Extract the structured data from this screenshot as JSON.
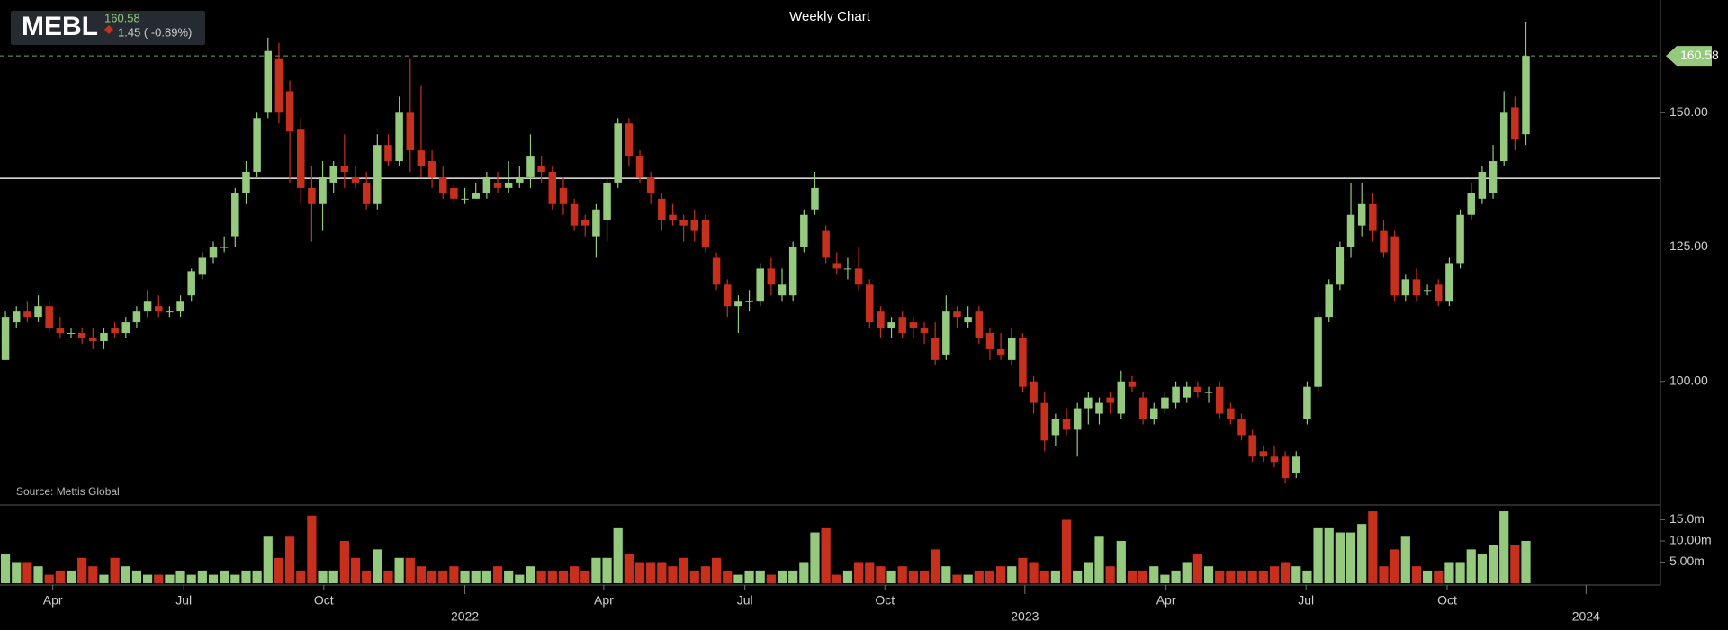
{
  "chart_data": {
    "type": "candlestick",
    "title": "Weekly Chart",
    "symbol": "MEBL",
    "change": "1.45 ( -0.89%)",
    "source": "Source: Mettis Global",
    "last_price": 160.58,
    "hline": 137.8,
    "up_color": "#94c97e",
    "down_color": "#c8301e",
    "candles": [
      [
        104,
        113,
        104,
        112
      ],
      [
        111,
        114,
        110,
        113
      ],
      [
        113,
        115,
        111,
        112
      ],
      [
        112,
        116,
        111,
        114
      ],
      [
        114,
        115,
        109,
        110
      ],
      [
        110,
        112,
        108,
        109
      ],
      [
        109,
        110,
        108,
        109
      ],
      [
        109,
        110,
        107,
        108
      ],
      [
        108,
        110,
        106,
        107.5
      ],
      [
        107.5,
        110,
        106,
        109
      ],
      [
        110,
        111,
        108,
        109
      ],
      [
        109,
        112,
        108,
        111
      ],
      [
        111,
        114,
        110,
        113
      ],
      [
        113,
        117,
        112,
        115
      ],
      [
        114,
        116,
        112,
        113
      ],
      [
        113,
        114,
        112,
        113
      ],
      [
        113,
        116,
        112,
        115
      ],
      [
        116,
        121,
        115,
        120.5
      ],
      [
        120,
        124,
        119,
        123
      ],
      [
        123,
        126,
        122,
        125
      ],
      [
        125,
        127,
        124,
        125
      ],
      [
        127,
        136,
        125,
        135
      ],
      [
        135,
        141,
        133,
        139
      ],
      [
        139,
        150,
        138,
        149
      ],
      [
        150,
        164,
        149,
        161.5
      ],
      [
        160,
        163,
        148,
        150
      ],
      [
        154,
        156,
        137,
        146.5
      ],
      [
        147,
        149,
        133,
        136
      ],
      [
        136,
        140,
        126,
        133
      ],
      [
        133,
        141,
        128,
        138
      ],
      [
        137,
        141,
        135,
        140
      ],
      [
        140,
        146,
        136,
        139
      ],
      [
        138,
        140,
        136,
        137
      ],
      [
        137,
        139,
        132,
        133
      ],
      [
        133,
        146,
        132,
        144
      ],
      [
        144,
        146,
        140,
        141
      ],
      [
        141,
        153,
        140,
        150
      ],
      [
        150,
        160,
        139,
        143
      ],
      [
        143,
        155,
        138,
        140
      ],
      [
        141,
        143,
        136,
        138
      ],
      [
        138,
        140,
        134,
        135
      ],
      [
        136,
        137,
        133,
        134
      ],
      [
        134,
        136,
        133,
        134
      ],
      [
        134,
        137,
        134,
        135
      ],
      [
        135,
        139,
        134,
        138
      ],
      [
        137,
        139,
        135,
        136
      ],
      [
        136,
        141,
        135,
        137
      ],
      [
        137,
        140,
        136,
        138
      ],
      [
        138,
        146,
        136,
        142
      ],
      [
        140,
        142,
        137,
        139
      ],
      [
        139,
        140,
        132,
        133
      ],
      [
        136,
        138,
        131,
        133
      ],
      [
        133,
        134,
        128,
        129
      ],
      [
        130,
        131,
        127,
        129
      ],
      [
        127,
        133,
        123,
        132
      ],
      [
        130,
        138,
        126,
        137
      ],
      [
        137,
        149,
        136,
        148
      ],
      [
        148,
        149,
        140,
        142
      ],
      [
        142,
        143,
        137,
        138
      ],
      [
        138,
        139,
        133,
        135
      ],
      [
        134,
        135,
        128,
        130
      ],
      [
        131,
        133,
        129,
        130
      ],
      [
        130,
        131,
        126,
        129
      ],
      [
        130,
        132,
        126,
        128
      ],
      [
        130,
        131,
        124,
        125
      ],
      [
        123,
        124,
        117,
        118
      ],
      [
        118,
        119,
        112,
        114
      ],
      [
        114,
        116,
        109,
        115
      ],
      [
        115,
        117,
        113,
        115
      ],
      [
        115,
        122,
        114,
        121
      ],
      [
        121,
        123,
        116,
        118
      ],
      [
        116,
        121,
        115,
        118
      ],
      [
        116,
        126,
        115,
        125
      ],
      [
        125,
        132,
        124,
        131
      ],
      [
        132,
        139,
        131,
        136
      ],
      [
        128,
        129,
        122,
        123
      ],
      [
        122,
        124,
        120,
        121
      ],
      [
        121,
        123,
        119,
        121
      ],
      [
        121,
        125,
        117,
        118
      ],
      [
        118,
        119,
        110,
        111
      ],
      [
        113,
        114,
        108,
        110
      ],
      [
        110,
        112,
        108,
        111
      ],
      [
        112,
        113,
        108,
        109
      ],
      [
        111,
        112,
        108,
        110
      ],
      [
        110,
        111,
        107,
        109
      ],
      [
        108,
        111,
        103,
        104
      ],
      [
        105,
        116,
        104,
        113
      ],
      [
        113,
        114,
        110,
        112
      ],
      [
        111,
        114,
        110,
        112
      ],
      [
        113,
        114,
        107,
        108
      ],
      [
        109,
        110,
        104,
        106
      ],
      [
        106,
        109,
        104,
        105
      ],
      [
        104,
        110,
        103,
        108
      ],
      [
        108,
        109,
        98,
        99
      ],
      [
        100,
        101,
        94,
        96
      ],
      [
        96,
        98,
        87,
        89
      ],
      [
        90,
        94,
        88,
        93
      ],
      [
        93,
        95,
        90,
        91
      ],
      [
        91,
        96,
        86,
        95
      ],
      [
        95,
        98,
        92,
        97
      ],
      [
        94,
        97,
        92,
        96
      ],
      [
        97,
        98,
        94,
        96
      ],
      [
        94,
        102,
        93,
        100
      ],
      [
        100,
        101,
        98,
        99
      ],
      [
        97,
        98,
        92,
        93
      ],
      [
        93,
        96,
        92,
        95
      ],
      [
        95,
        98,
        94,
        97
      ],
      [
        96,
        100,
        95,
        99
      ],
      [
        97,
        100,
        96,
        99
      ],
      [
        99,
        100,
        97,
        98
      ],
      [
        98,
        99,
        96,
        98
      ],
      [
        99,
        100,
        93,
        94
      ],
      [
        95,
        96,
        92,
        93
      ],
      [
        93,
        94,
        89,
        90
      ],
      [
        90,
        91,
        85,
        86
      ],
      [
        87,
        88,
        85,
        86
      ],
      [
        86,
        88,
        84,
        85
      ],
      [
        86,
        87,
        81,
        82
      ],
      [
        83,
        87,
        82,
        86
      ],
      [
        93,
        100,
        92,
        99
      ],
      [
        99,
        113,
        98,
        112
      ],
      [
        112,
        119,
        111,
        118
      ],
      [
        118,
        126,
        117,
        125
      ],
      [
        125,
        137,
        123,
        131
      ],
      [
        129,
        137,
        127,
        133
      ],
      [
        133,
        135,
        126,
        128
      ],
      [
        128,
        130,
        123,
        124
      ],
      [
        127,
        128,
        115,
        116
      ],
      [
        116,
        120,
        115,
        119
      ],
      [
        119,
        121,
        115,
        116
      ],
      [
        117,
        118,
        116,
        117
      ],
      [
        118,
        119,
        114,
        115
      ],
      [
        115,
        123,
        114,
        122
      ],
      [
        122,
        132,
        121,
        131
      ],
      [
        131,
        137,
        130,
        135
      ],
      [
        134,
        140,
        133,
        139
      ],
      [
        135,
        144,
        134,
        141
      ],
      [
        141,
        154,
        140,
        150
      ],
      [
        151,
        153,
        143,
        145
      ],
      [
        146,
        167,
        144,
        160.58
      ]
    ],
    "volumes": [
      7,
      5,
      5,
      4,
      2,
      3,
      3,
      6,
      4,
      2,
      6,
      4,
      3,
      2,
      2,
      2,
      3,
      2,
      3,
      2,
      3,
      2,
      3,
      3,
      11,
      6,
      11,
      3,
      16,
      3,
      3,
      10,
      6,
      3,
      8,
      3,
      6,
      6,
      4,
      3,
      3,
      4,
      3,
      3,
      3,
      4,
      3,
      2,
      4,
      3,
      3,
      3,
      4,
      3,
      6,
      6,
      13,
      7,
      5,
      5,
      5,
      4,
      6,
      3,
      4,
      6,
      3,
      2,
      3,
      3,
      2,
      3,
      3,
      5,
      12,
      13,
      2,
      3,
      5,
      5,
      4,
      3,
      4,
      3,
      3,
      8,
      4,
      2,
      2,
      3,
      3,
      4,
      4,
      6,
      5,
      3,
      3,
      15,
      3,
      5,
      11,
      4,
      10,
      3,
      3,
      4,
      2,
      3,
      5,
      7,
      4,
      3,
      3,
      3,
      3,
      3,
      4,
      5,
      4,
      3,
      13,
      13,
      12,
      12,
      14,
      17,
      4,
      8,
      11,
      4,
      3,
      3,
      5,
      5,
      8,
      7,
      9,
      17,
      9,
      10
    ],
    "xlim": [
      -0.5,
      151.3
    ],
    "xticks": [
      {
        "value": 4.33,
        "label": "Apr"
      },
      {
        "value": 16.3,
        "label": "Jul"
      },
      {
        "value": 29.1,
        "label": "Oct"
      },
      {
        "value": 42.0,
        "label": "2022"
      },
      {
        "value": 54.7,
        "label": "Apr"
      },
      {
        "value": 67.6,
        "label": "Jul"
      },
      {
        "value": 80.4,
        "label": "Oct"
      },
      {
        "value": 93.2,
        "label": "2023"
      },
      {
        "value": 106.1,
        "label": "Apr"
      },
      {
        "value": 118.9,
        "label": "Jul"
      },
      {
        "value": 131.8,
        "label": "Oct"
      },
      {
        "value": 144.5,
        "label": "2024"
      }
    ],
    "ylim": [
      77,
      171
    ],
    "yticks": [
      {
        "value": 100,
        "label": "100.00"
      },
      {
        "value": 125,
        "label": "125.00"
      },
      {
        "value": 150,
        "label": "150.00"
      }
    ],
    "vlim": [
      0,
      18.5
    ],
    "vticks": [
      {
        "value": 5,
        "label": "5.00m"
      },
      {
        "value": 10,
        "label": "10.00m"
      },
      {
        "value": 15,
        "label": "15.0m"
      }
    ]
  }
}
